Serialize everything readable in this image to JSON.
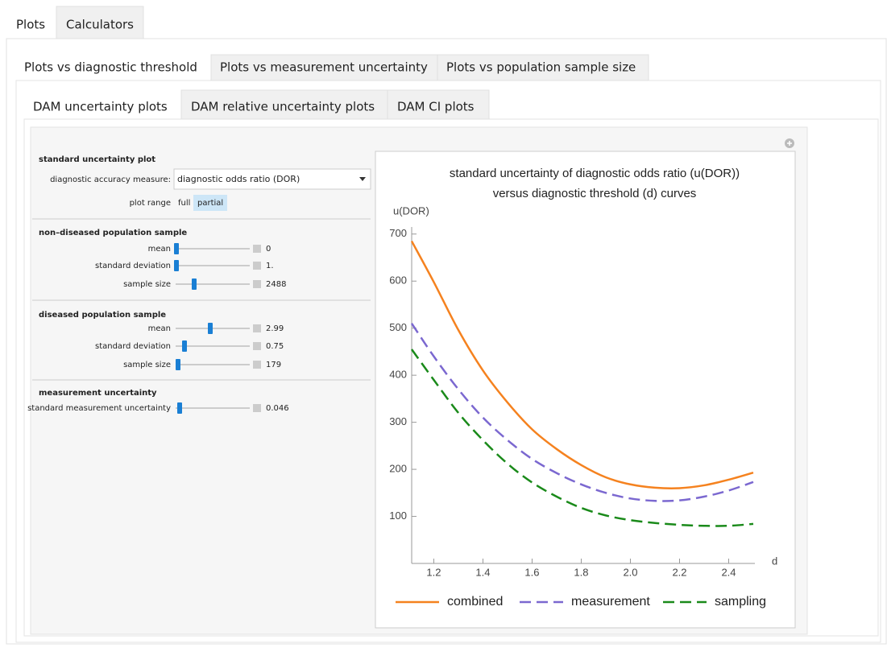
{
  "tabs": [
    "Plots",
    "Calculators"
  ],
  "subtabs": [
    "Plots vs diagnostic threshold",
    "Plots vs measurement uncertainty",
    "Plots vs population sample size"
  ],
  "plot_tabs": [
    "DAM uncertainty plots",
    "DAM relative uncertainty plots",
    "DAM CI plots"
  ],
  "controls": {
    "plot_section": "standard uncertainty plot",
    "measure_label": "diagnostic accuracy measure:",
    "measure_value": "diagnostic odds ratio (DOR)",
    "range_label": "plot range",
    "range_options": [
      "full",
      "partial"
    ],
    "sections": [
      {
        "title": "non–diseased population sample",
        "sliders": [
          {
            "label": "mean",
            "value": 0
          },
          {
            "label": "standard deviation",
            "value": "1."
          },
          {
            "label": "sample size",
            "value": 2488
          }
        ]
      },
      {
        "title": "diseased population sample",
        "sliders": [
          {
            "label": "mean",
            "value": 2.99
          },
          {
            "label": "standard deviation",
            "value": 0.75
          },
          {
            "label": "sample size",
            "value": 179
          }
        ]
      },
      {
        "title": "measurement uncertainty",
        "sliders": [
          {
            "label": "standard measurement uncertainty",
            "value": 0.046
          }
        ]
      }
    ]
  },
  "chart_data": {
    "type": "line",
    "title": [
      "standard uncertainty of diagnostic odds ratio (u(DOR))",
      "versus diagnostic threshold (d) curves"
    ],
    "x_label": "d",
    "y_label": "u(DOR)",
    "x": [
      1.11,
      1.2,
      1.3,
      1.4,
      1.5,
      1.6,
      1.7,
      1.8,
      1.9,
      2.0,
      2.1,
      2.2,
      2.3,
      2.4,
      2.5
    ],
    "xlim": [
      1.11,
      2.5
    ],
    "xticks": [
      1.2,
      1.4,
      1.6,
      1.8,
      {
        "value": 2,
        "label": "2.0"
      },
      2.2,
      2.4
    ],
    "ylim": [
      0,
      715
    ],
    "yticks": [
      100,
      200,
      300,
      400,
      500,
      600,
      700
    ],
    "series": [
      {
        "name": "combined",
        "color": "#f5821f",
        "dashed": false,
        "values": [
          685,
          598,
          496,
          410,
          342,
          285,
          243,
          209,
          183,
          168,
          161,
          160,
          166,
          178,
          193
        ]
      },
      {
        "name": "measurement",
        "color": "#7b68d0",
        "dashed": true,
        "values": [
          510,
          440,
          370,
          310,
          262,
          222,
          192,
          168,
          150,
          138,
          133,
          134,
          142,
          155,
          173
        ]
      },
      {
        "name": "sampling",
        "color": "#1a8a1a",
        "dashed": true,
        "values": [
          455,
          390,
          320,
          262,
          212,
          172,
          142,
          118,
          102,
          92,
          86,
          82,
          80,
          80,
          84
        ]
      }
    ]
  }
}
